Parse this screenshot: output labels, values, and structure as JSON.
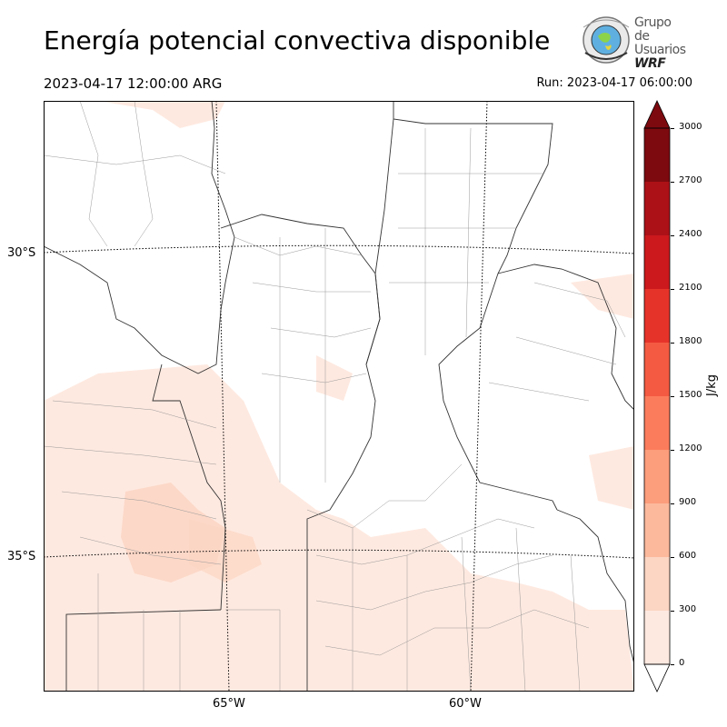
{
  "header": {
    "title": "Energía potencial convectiva disponible",
    "valid_time": "2023-04-17 12:00:00 ARG",
    "run_time": "Run: 2023-04-17 06:00:00"
  },
  "logo": {
    "line1": "Grupo de",
    "line2": "Usuarios",
    "line3": "WRF"
  },
  "map": {
    "variable": "CAPE",
    "lat_labels": [
      "30°S",
      "35°S"
    ],
    "lon_labels": [
      "65°W",
      "60°W"
    ]
  },
  "colorbar": {
    "unit": "J/kg",
    "ticks": [
      "0",
      "300",
      "600",
      "900",
      "1200",
      "1500",
      "1800",
      "2100",
      "2400",
      "2700",
      "3000"
    ],
    "colors": [
      "#fee9e0",
      "#fcd5c3",
      "#fcb99c",
      "#fc9d7b",
      "#fb7c5c",
      "#f45a42",
      "#e6332a",
      "#cc191d",
      "#ac1117",
      "#7d0a0f"
    ],
    "extend": "both"
  }
}
